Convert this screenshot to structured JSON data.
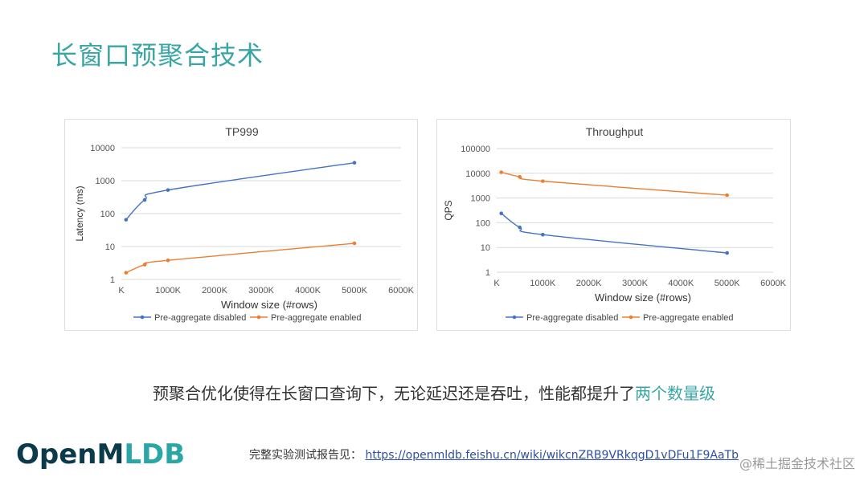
{
  "slide": {
    "title": "长窗口预聚合技术",
    "summary_main": "预聚合优化使得在长窗口查询下，无论延迟还是吞吐，性能都提升了",
    "summary_accent": "两个数量级",
    "report_label": "完整实验测试报告见：",
    "report_link": "https://openmldb.feishu.cn/wiki/wikcnZRB9VRkqgD1vDFu1F9AaTb",
    "logo_main": "OpenM",
    "logo_accent": "LDB",
    "watermark": "@稀土掘金技术社区"
  },
  "colors": {
    "title": "#3aa5a5",
    "accent_text": "#3aa5a5",
    "series_disabled": "#4472c4",
    "series_enabled": "#ed7d31",
    "grid": "#d9d9d9"
  },
  "chart_data": [
    {
      "type": "line",
      "title": "TP999",
      "xlabel": "Window size (#rows)",
      "ylabel": "Latency (ms)",
      "y_scale": "log",
      "ylim": [
        1,
        10000
      ],
      "xlim": [
        0,
        6000
      ],
      "x_tick_values": [
        0,
        1000,
        2000,
        3000,
        4000,
        5000,
        6000
      ],
      "x_tick_labels": [
        "K",
        "1000K",
        "2000K",
        "3000K",
        "4000K",
        "5000K",
        "6000K"
      ],
      "y_tick_values": [
        1,
        10,
        100,
        1000,
        10000
      ],
      "y_tick_labels": [
        "1",
        "10",
        "100",
        "1000",
        "10000"
      ],
      "grid": true,
      "legend_position": "bottom",
      "series": [
        {
          "name": "Pre-aggregate disabled",
          "color": "#4472c4",
          "x": [
            100,
            500,
            1000,
            5000
          ],
          "y": [
            65,
            260,
            520,
            3500
          ]
        },
        {
          "name": "Pre-aggregate enabled",
          "color": "#ed7d31",
          "x": [
            100,
            500,
            1000,
            5000
          ],
          "y": [
            1.6,
            2.8,
            3.8,
            12.5
          ]
        }
      ]
    },
    {
      "type": "line",
      "title": "Throughput",
      "xlabel": "Window size (#rows)",
      "ylabel": "QPS",
      "y_scale": "log",
      "ylim": [
        1,
        100000
      ],
      "xlim": [
        0,
        6000
      ],
      "x_tick_values": [
        0,
        1000,
        2000,
        3000,
        4000,
        5000,
        6000
      ],
      "x_tick_labels": [
        "K",
        "1000K",
        "2000K",
        "3000K",
        "4000K",
        "5000K",
        "6000K"
      ],
      "y_tick_values": [
        1,
        10,
        100,
        1000,
        10000,
        100000
      ],
      "y_tick_labels": [
        "1",
        "10",
        "100",
        "1000",
        "10000",
        "100000"
      ],
      "grid": true,
      "legend_position": "bottom",
      "series": [
        {
          "name": "Pre-aggregate disabled",
          "color": "#4472c4",
          "x": [
            100,
            500,
            1000,
            5000
          ],
          "y": [
            240,
            65,
            33,
            6
          ]
        },
        {
          "name": "Pre-aggregate enabled",
          "color": "#ed7d31",
          "x": [
            100,
            500,
            1000,
            5000
          ],
          "y": [
            11000,
            7200,
            4800,
            1300
          ]
        }
      ]
    }
  ]
}
